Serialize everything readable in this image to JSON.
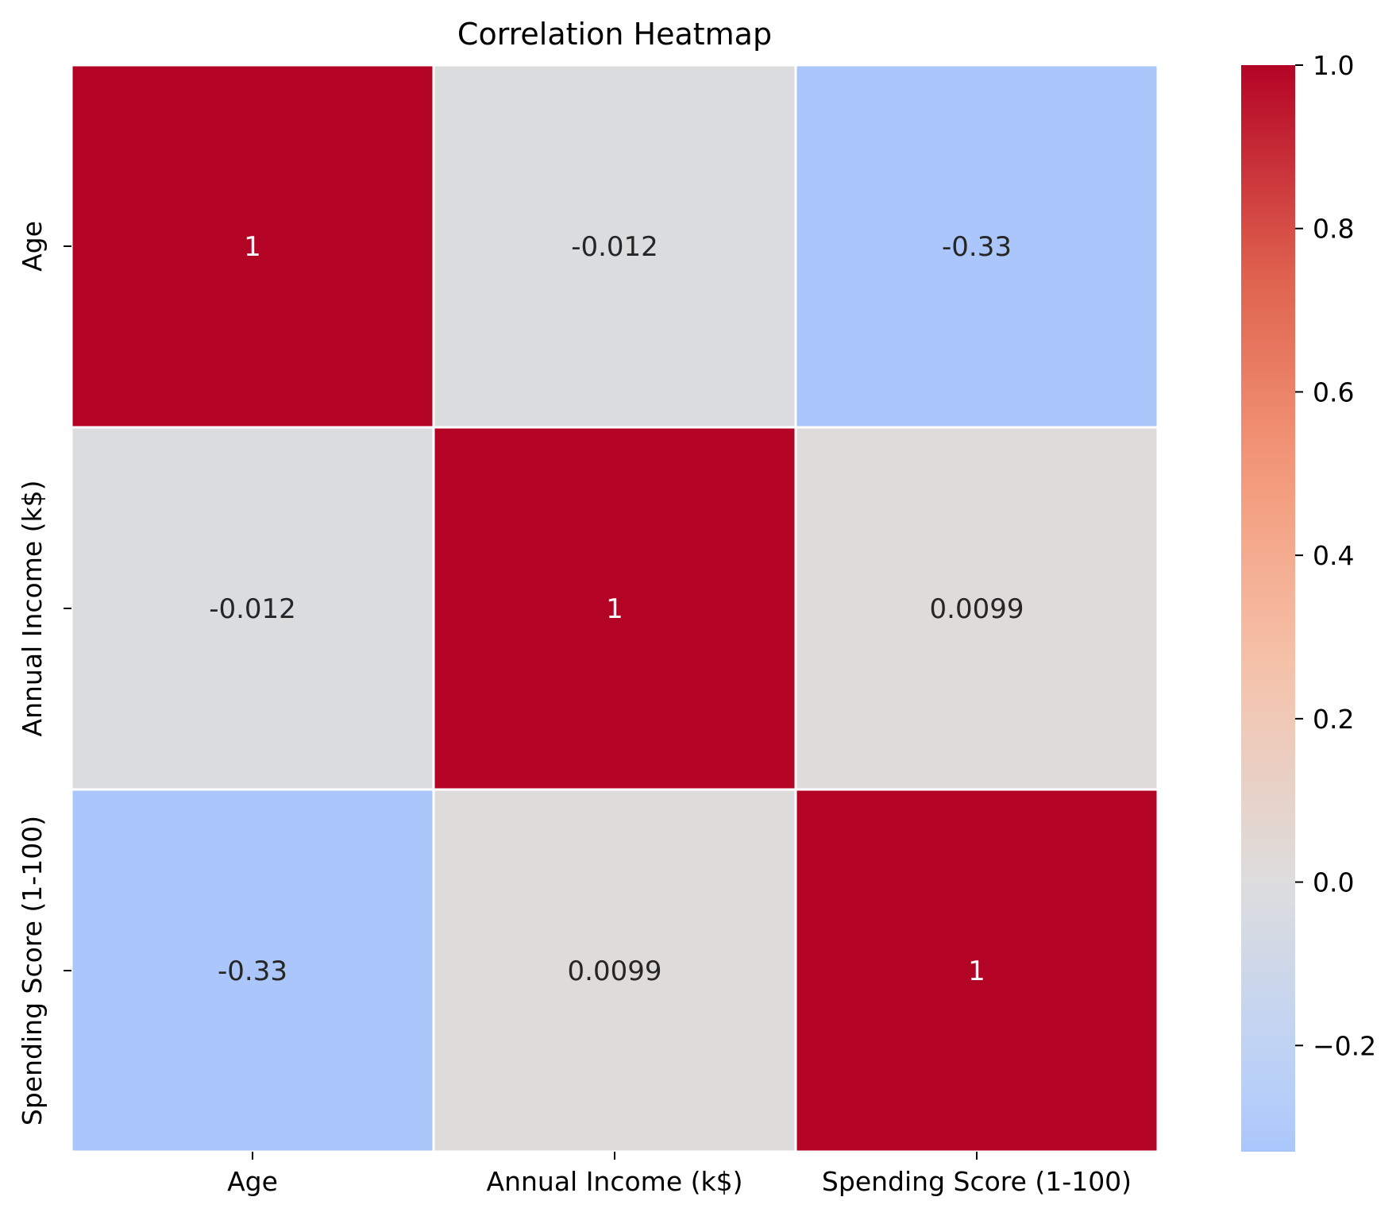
{
  "chart_data": {
    "type": "heatmap",
    "title": "Correlation Heatmap",
    "xlabel": "",
    "ylabel": "",
    "x_categories": [
      "Age",
      "Annual Income (k$)",
      "Spending Score (1-100)"
    ],
    "y_categories": [
      "Age",
      "Annual Income (k$)",
      "Spending Score (1-100)"
    ],
    "values": [
      [
        1,
        -0.012,
        -0.33
      ],
      [
        -0.012,
        1,
        0.0099
      ],
      [
        -0.33,
        0.0099,
        1
      ]
    ],
    "annotations": [
      [
        "1",
        "-0.012",
        "-0.33"
      ],
      [
        "-0.012",
        "1",
        "0.0099"
      ],
      [
        "-0.33",
        "0.0099",
        "1"
      ]
    ],
    "colormap": "coolwarm",
    "center": 0,
    "vmin": -0.33,
    "vmax": 1.0,
    "colorbar": {
      "ticks": [
        1.0,
        0.8,
        0.6,
        0.4,
        0.2,
        0.0,
        -0.2
      ],
      "tick_labels": [
        "1.0",
        "0.8",
        "0.6",
        "0.4",
        "0.2",
        "0.0",
        "−0.2"
      ],
      "placement": "right"
    },
    "cell_border_color": "#ffffff",
    "legend": "none",
    "grid": false
  }
}
